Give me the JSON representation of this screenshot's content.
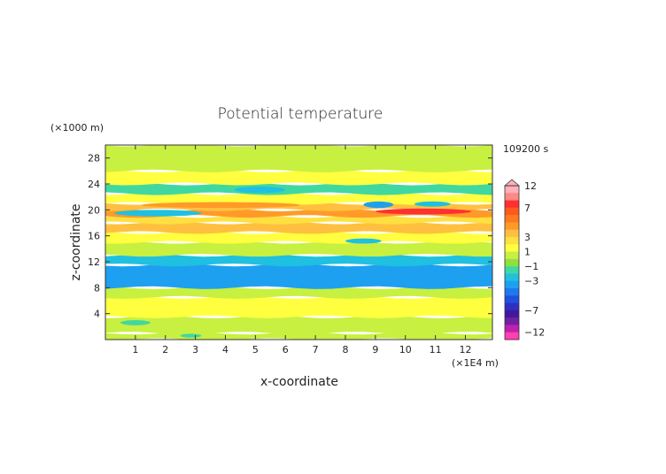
{
  "chart_data": {
    "type": "heatmap",
    "title": "Potential temperature",
    "xlabel": "x-coordinate",
    "ylabel": "z-coordinate",
    "x_unit": "(×1E4 m)",
    "y_unit": "(×1000 m)",
    "time_label": "109200 s",
    "xlim": [
      0,
      12.9
    ],
    "ylim": [
      0,
      30
    ],
    "x_ticks": [
      1,
      2,
      3,
      4,
      5,
      6,
      7,
      8,
      9,
      10,
      11,
      12
    ],
    "y_ticks": [
      4,
      8,
      12,
      16,
      20,
      24,
      28
    ],
    "colorbar": {
      "labels": [
        "12",
        "7",
        "3",
        "1",
        "−1",
        "−3",
        "−7",
        "−12"
      ],
      "label_values": [
        12,
        7,
        3,
        1,
        -1,
        -3,
        -7,
        -12
      ],
      "levels": [
        12,
        10,
        8,
        7,
        6,
        5,
        4,
        3,
        2,
        1,
        0,
        -1,
        -2,
        -3,
        -4,
        -5,
        -6,
        -7,
        -8,
        -10,
        -12
      ],
      "colors": [
        "#ffb0b8",
        "#ff8888",
        "#ff3030",
        "#ff5a1e",
        "#ff7a1e",
        "#ff9a28",
        "#ffc040",
        "#ffe040",
        "#ffff40",
        "#c8f040",
        "#90e040",
        "#40d8a0",
        "#20c0e0",
        "#1ea0f0",
        "#1e78f0",
        "#2050e0",
        "#3030c0",
        "#4018a0",
        "#7020a0",
        "#c020b0",
        "#ff40b0"
      ]
    },
    "bands": [
      {
        "z": [
          0,
          1
        ],
        "value": 0.2
      },
      {
        "z": [
          1,
          3.5
        ],
        "value": 0.4
      },
      {
        "z": [
          3.5,
          6.5
        ],
        "value": 1.3
      },
      {
        "z": [
          6.5,
          8
        ],
        "value": 0.1
      },
      {
        "z": [
          8,
          11.5
        ],
        "value": -3.6
      },
      {
        "z": [
          11.5,
          13
        ],
        "value": -2.2
      },
      {
        "z": [
          13,
          15
        ],
        "value": 0.2
      },
      {
        "z": [
          15,
          16.5
        ],
        "value": 1.5
      },
      {
        "z": [
          16.5,
          18
        ],
        "value": 3.6
      },
      {
        "z": [
          18,
          19
        ],
        "value": 2.2
      },
      {
        "z": [
          19,
          20
        ],
        "value": 4.2
      },
      {
        "z": [
          20,
          21
        ],
        "value": 3.2
      },
      {
        "z": [
          21,
          22.5
        ],
        "value": 1.5
      },
      {
        "z": [
          22.5,
          24
        ],
        "value": -1.5
      },
      {
        "z": [
          24,
          26
        ],
        "value": 1.3
      },
      {
        "z": [
          26,
          30
        ],
        "value": 0.6
      }
    ],
    "features": [
      {
        "x": [
          0.3,
          3.2
        ],
        "z": [
          19,
          20
        ],
        "value": -2.2
      },
      {
        "x": [
          8.6,
          9.6
        ],
        "z": [
          20.3,
          21.3
        ],
        "value": -3.2
      },
      {
        "x": [
          10.3,
          11.5
        ],
        "z": [
          20.5,
          21.3
        ],
        "value": -2.2
      },
      {
        "x": [
          9.0,
          12.2
        ],
        "z": [
          19.3,
          20.2
        ],
        "value": 7.5
      },
      {
        "x": [
          1.2,
          6.5
        ],
        "z": [
          20.3,
          21.2
        ],
        "value": 4.5
      },
      {
        "x": [
          4.3,
          6.0
        ],
        "z": [
          22.6,
          23.6
        ],
        "value": -2.6
      },
      {
        "x": [
          8.0,
          9.2
        ],
        "z": [
          14.8,
          15.6
        ],
        "value": -2.2
      },
      {
        "x": [
          1.5,
          4.0
        ],
        "z": [
          5.0,
          6.0
        ],
        "value": 1.6
      },
      {
        "x": [
          7.5,
          11.0
        ],
        "z": [
          4.0,
          5.0
        ],
        "value": 1.6
      },
      {
        "x": [
          0.5,
          1.5
        ],
        "z": [
          2.2,
          3.0
        ],
        "value": -2.0
      },
      {
        "x": [
          2.5,
          3.2
        ],
        "z": [
          0.3,
          0.9
        ],
        "value": -2.0
      }
    ]
  }
}
